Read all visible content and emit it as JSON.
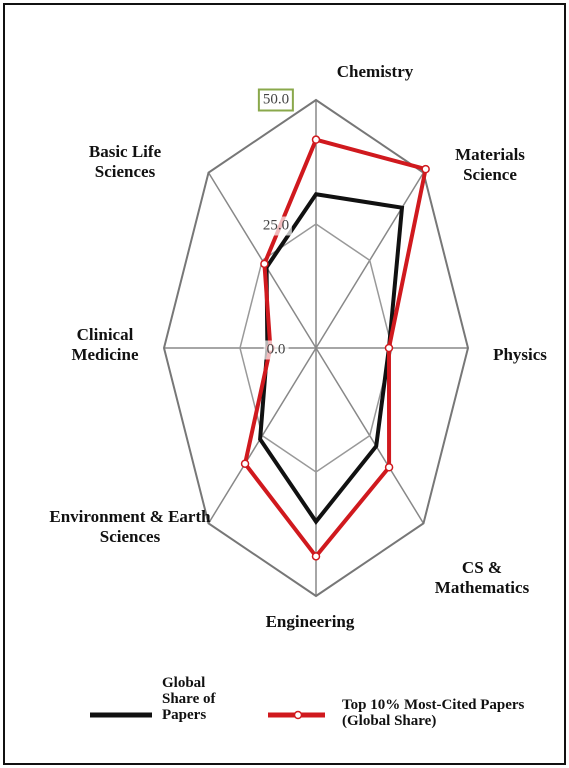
{
  "chart_data": {
    "type": "radar",
    "categories": [
      "Chemistry",
      "Materials Science",
      "Physics",
      "CS & Mathematics",
      "Engineering",
      "Environment & Earth Sciences",
      "Clinical Medicine",
      "Basic Life Sciences"
    ],
    "series": [
      {
        "name": "Global Share of Papers",
        "color": "#111111",
        "values": [
          31,
          40,
          24,
          28,
          35,
          26,
          16,
          23
        ]
      },
      {
        "name": "Top 10% Most-Cited Papers (Global Share)",
        "color": "#d0191e",
        "values": [
          42,
          51,
          24,
          34,
          42,
          33,
          15,
          24
        ]
      }
    ],
    "ylim": [
      0,
      50
    ],
    "yticks": [
      {
        "value": 0,
        "label": "0.0"
      },
      {
        "value": 25,
        "label": "25.0"
      },
      {
        "value": 50,
        "label": "50.0"
      }
    ],
    "grid": true
  }
}
